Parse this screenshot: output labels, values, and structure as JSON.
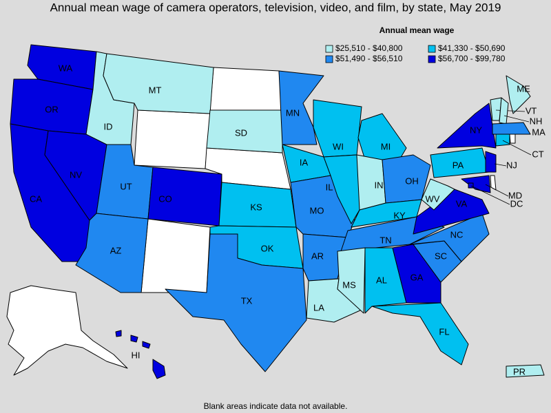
{
  "title": "Annual mean wage of camera operators, television, video, and film, by state, May 2019",
  "legend": {
    "title": "Annual mean wage",
    "items": [
      {
        "label": "$25,510 - $40,800",
        "color": "#b0eef0"
      },
      {
        "label": "$41,330 - $50,690",
        "color": "#00c0f0"
      },
      {
        "label": "$51,490 - $56,510",
        "color": "#2088f0"
      },
      {
        "label": "$56,700 - $99,780",
        "color": "#0000e0"
      }
    ]
  },
  "states": [
    {
      "label": "WA",
      "bin": 3
    },
    {
      "label": "OR",
      "bin": 3
    },
    {
      "label": "CA",
      "bin": 3
    },
    {
      "label": "NV",
      "bin": 3
    },
    {
      "label": "ID",
      "bin": 0
    },
    {
      "label": "MT",
      "bin": 0
    },
    {
      "label": "UT",
      "bin": 2
    },
    {
      "label": "CO",
      "bin": 3
    },
    {
      "label": "AZ",
      "bin": 2
    },
    {
      "label": "SD",
      "bin": 0
    },
    {
      "label": "KS",
      "bin": 1
    },
    {
      "label": "OK",
      "bin": 1
    },
    {
      "label": "TX",
      "bin": 2
    },
    {
      "label": "MN",
      "bin": 2
    },
    {
      "label": "IA",
      "bin": 1
    },
    {
      "label": "MO",
      "bin": 2
    },
    {
      "label": "AR",
      "bin": 2
    },
    {
      "label": "LA",
      "bin": 0
    },
    {
      "label": "WI",
      "bin": 1
    },
    {
      "label": "IL",
      "bin": 1
    },
    {
      "label": "MI",
      "bin": 1
    },
    {
      "label": "IN",
      "bin": 0
    },
    {
      "label": "OH",
      "bin": 2
    },
    {
      "label": "KY",
      "bin": 1
    },
    {
      "label": "TN",
      "bin": 2
    },
    {
      "label": "MS",
      "bin": 0
    },
    {
      "label": "AL",
      "bin": 1
    },
    {
      "label": "GA",
      "bin": 3
    },
    {
      "label": "FL",
      "bin": 1
    },
    {
      "label": "SC",
      "bin": 2
    },
    {
      "label": "NC",
      "bin": 2
    },
    {
      "label": "VA",
      "bin": 3
    },
    {
      "label": "WV",
      "bin": 0
    },
    {
      "label": "PA",
      "bin": 1
    },
    {
      "label": "NY",
      "bin": 3
    },
    {
      "label": "NJ",
      "bin": 3
    },
    {
      "label": "MD",
      "bin": 3
    },
    {
      "label": "DC",
      "bin": 3
    },
    {
      "label": "ME",
      "bin": 0
    },
    {
      "label": "VT",
      "bin": 0
    },
    {
      "label": "NH",
      "bin": 0
    },
    {
      "label": "MA",
      "bin": 2
    },
    {
      "label": "CT",
      "bin": 1
    },
    {
      "label": "HI",
      "bin": 3
    },
    {
      "label": "PR",
      "bin": 0
    }
  ],
  "note": "Blank areas indicate data not available."
}
